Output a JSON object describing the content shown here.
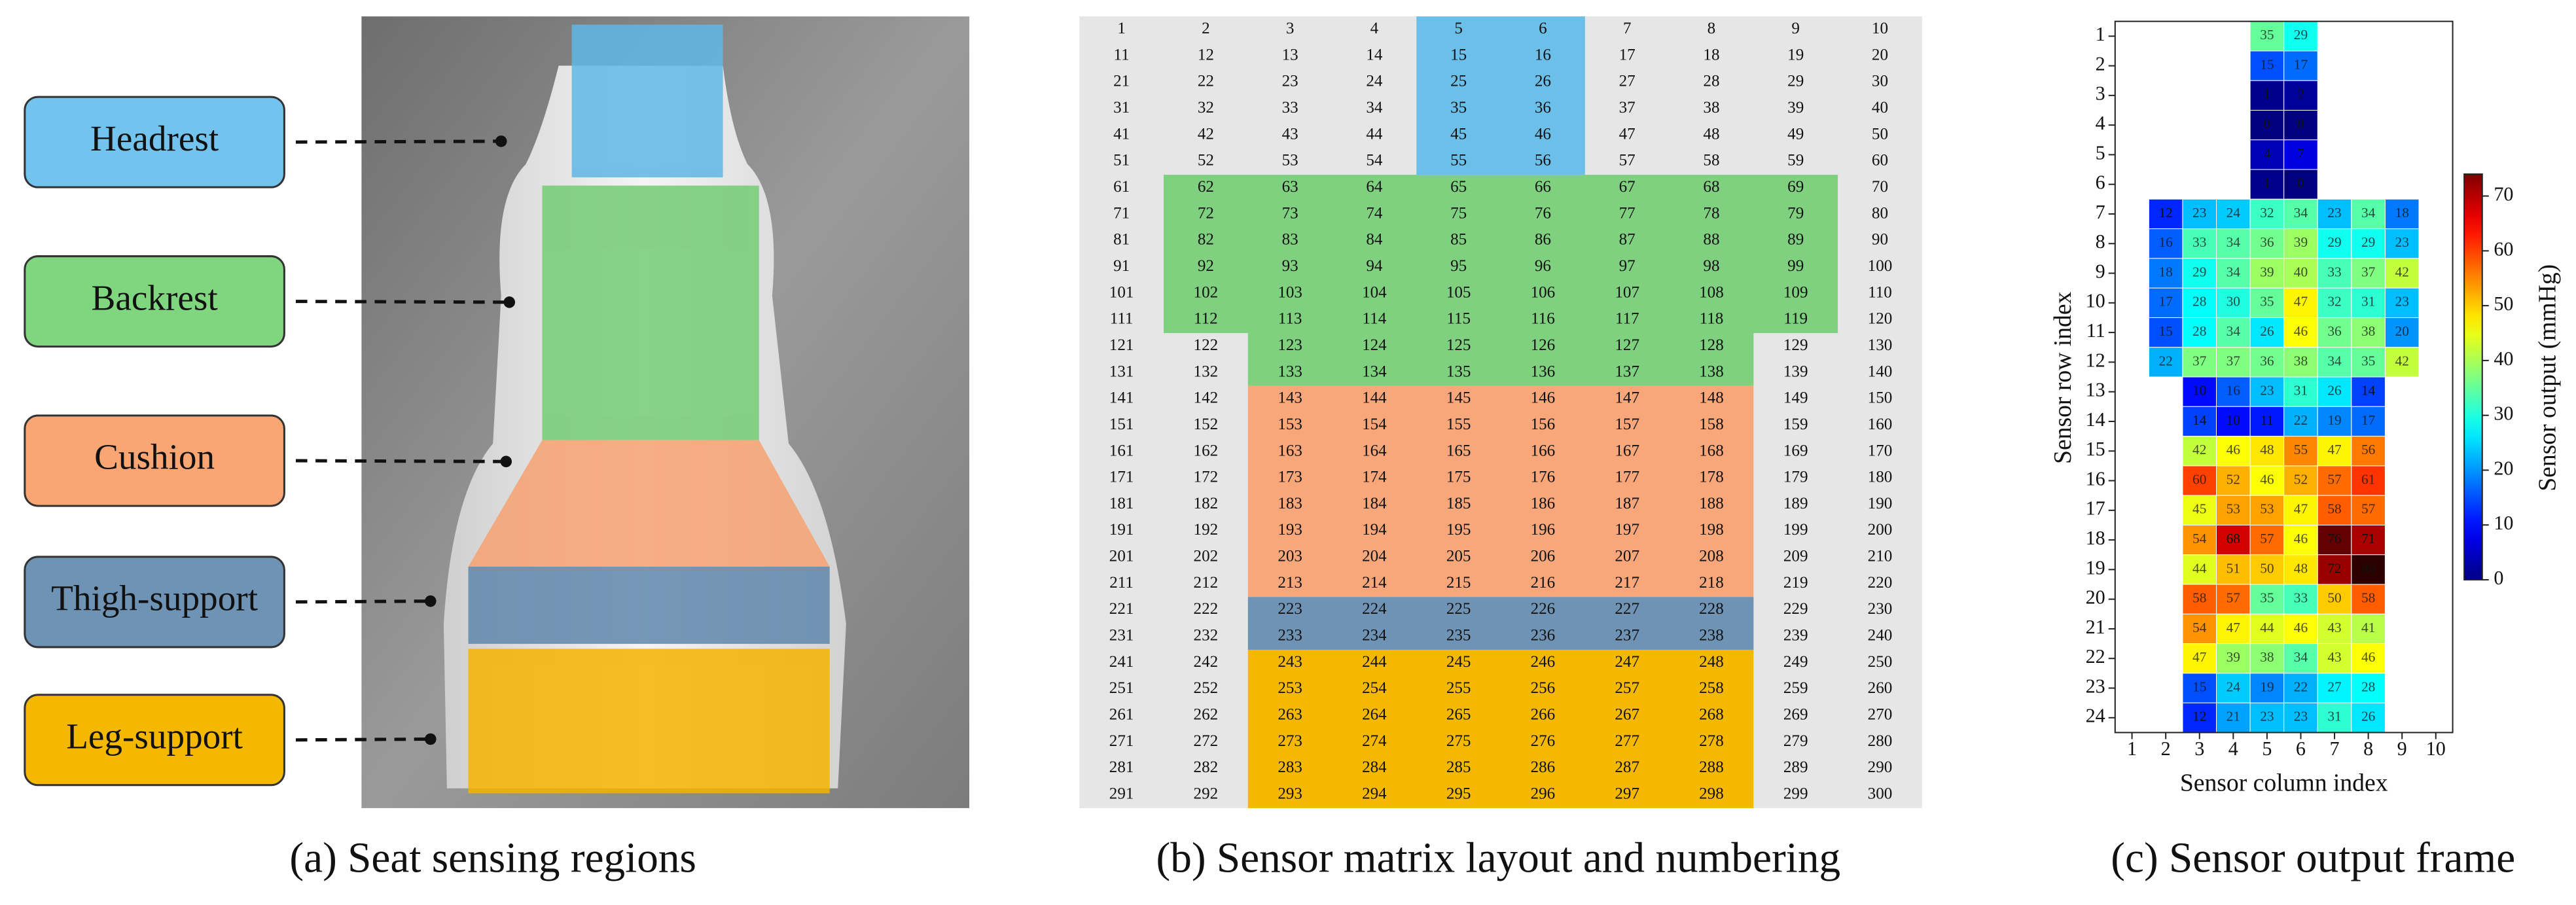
{
  "panel_a": {
    "caption": "(a) Seat sensing regions",
    "regions": [
      "Headrest",
      "Backrest",
      "Cushion",
      "Thigh-support",
      "Leg-support"
    ]
  },
  "panel_b": {
    "caption": "(b) Sensor matrix layout and numbering",
    "cells": [
      [
        1,
        2,
        3,
        4,
        5,
        6,
        7,
        8,
        9,
        10
      ],
      [
        11,
        12,
        13,
        14,
        15,
        16,
        17,
        18,
        19,
        20
      ],
      [
        21,
        22,
        23,
        24,
        25,
        26,
        27,
        28,
        29,
        30
      ],
      [
        31,
        32,
        33,
        34,
        35,
        36,
        37,
        38,
        39,
        40
      ],
      [
        41,
        42,
        43,
        44,
        45,
        46,
        47,
        48,
        49,
        50
      ],
      [
        51,
        52,
        53,
        54,
        55,
        56,
        57,
        58,
        59,
        60
      ],
      [
        61,
        62,
        63,
        64,
        65,
        66,
        67,
        68,
        69,
        70
      ],
      [
        71,
        72,
        73,
        74,
        75,
        76,
        77,
        78,
        79,
        80
      ],
      [
        81,
        82,
        83,
        84,
        85,
        86,
        87,
        88,
        89,
        90
      ],
      [
        91,
        92,
        93,
        94,
        95,
        96,
        97,
        98,
        99,
        100
      ],
      [
        101,
        102,
        103,
        104,
        105,
        106,
        107,
        108,
        109,
        110
      ],
      [
        111,
        112,
        113,
        114,
        115,
        116,
        117,
        118,
        119,
        120
      ],
      [
        121,
        122,
        123,
        124,
        125,
        126,
        127,
        128,
        129,
        130
      ],
      [
        131,
        132,
        133,
        134,
        135,
        136,
        137,
        138,
        139,
        140
      ],
      [
        141,
        142,
        143,
        144,
        145,
        146,
        147,
        148,
        149,
        150
      ],
      [
        151,
        152,
        153,
        154,
        155,
        156,
        157,
        158,
        159,
        160
      ],
      [
        161,
        162,
        163,
        164,
        165,
        166,
        167,
        168,
        169,
        170
      ],
      [
        171,
        172,
        173,
        174,
        175,
        176,
        177,
        178,
        179,
        180
      ],
      [
        181,
        182,
        183,
        184,
        185,
        186,
        187,
        188,
        189,
        190
      ],
      [
        191,
        192,
        193,
        194,
        195,
        196,
        197,
        198,
        199,
        200
      ],
      [
        201,
        202,
        203,
        204,
        205,
        206,
        207,
        208,
        209,
        210
      ],
      [
        211,
        212,
        213,
        214,
        215,
        216,
        217,
        218,
        219,
        220
      ],
      [
        221,
        222,
        223,
        224,
        225,
        226,
        227,
        228,
        229,
        230
      ],
      [
        231,
        232,
        233,
        234,
        235,
        236,
        237,
        238,
        239,
        240
      ],
      [
        241,
        242,
        243,
        244,
        245,
        246,
        247,
        248,
        249,
        250
      ],
      [
        251,
        252,
        253,
        254,
        255,
        256,
        257,
        258,
        259,
        260
      ],
      [
        261,
        262,
        263,
        264,
        265,
        266,
        267,
        268,
        269,
        270
      ],
      [
        271,
        272,
        273,
        274,
        275,
        276,
        277,
        278,
        279,
        280
      ],
      [
        281,
        282,
        283,
        284,
        285,
        286,
        287,
        288,
        289,
        290
      ],
      [
        291,
        292,
        293,
        294,
        295,
        296,
        297,
        298,
        299,
        300
      ]
    ]
  },
  "chart_data": {
    "type": "heatmap",
    "caption": "(c) Sensor output frame",
    "xlabel": "Sensor column index",
    "ylabel": "Sensor row index",
    "xlim": [
      0.5,
      10.5
    ],
    "ylim": [
      24.5,
      0.5
    ],
    "xticks": [
      1,
      2,
      3,
      4,
      5,
      6,
      7,
      8,
      9,
      10
    ],
    "yticks": [
      1,
      2,
      3,
      4,
      5,
      6,
      7,
      8,
      9,
      10,
      11,
      12,
      13,
      14,
      15,
      16,
      17,
      18,
      19,
      20,
      21,
      22,
      23,
      24
    ],
    "colormap": "jet",
    "zlim": [
      0,
      74
    ],
    "zticks": [
      0,
      10,
      20,
      30,
      40,
      50,
      60,
      70
    ],
    "colorbar_label": "Sensor output (mmHg)",
    "values": [
      [
        null,
        null,
        null,
        null,
        35,
        29,
        null,
        null,
        null,
        null
      ],
      [
        null,
        null,
        null,
        null,
        15,
        17,
        null,
        null,
        null,
        null
      ],
      [
        null,
        null,
        null,
        null,
        1,
        2,
        null,
        null,
        null,
        null
      ],
      [
        null,
        null,
        null,
        null,
        0,
        0,
        null,
        null,
        null,
        null
      ],
      [
        null,
        null,
        null,
        null,
        4,
        7,
        null,
        null,
        null,
        null
      ],
      [
        null,
        null,
        null,
        null,
        1,
        0,
        null,
        null,
        null,
        null
      ],
      [
        null,
        12,
        23,
        24,
        32,
        34,
        23,
        34,
        18,
        null
      ],
      [
        null,
        16,
        33,
        34,
        36,
        39,
        29,
        29,
        23,
        null
      ],
      [
        null,
        18,
        29,
        34,
        39,
        40,
        33,
        37,
        42,
        null
      ],
      [
        null,
        17,
        28,
        30,
        35,
        47,
        32,
        31,
        23,
        null
      ],
      [
        null,
        15,
        28,
        34,
        26,
        46,
        36,
        38,
        20,
        null
      ],
      [
        null,
        22,
        37,
        37,
        36,
        38,
        34,
        35,
        42,
        null
      ],
      [
        null,
        null,
        10,
        16,
        23,
        31,
        26,
        14,
        null,
        null
      ],
      [
        null,
        null,
        14,
        10,
        11,
        22,
        19,
        17,
        null,
        null
      ],
      [
        null,
        null,
        42,
        46,
        48,
        55,
        47,
        56,
        null,
        null
      ],
      [
        null,
        null,
        60,
        52,
        46,
        52,
        57,
        61,
        null,
        null
      ],
      [
        null,
        null,
        45,
        53,
        53,
        47,
        58,
        57,
        null,
        null
      ],
      [
        null,
        null,
        54,
        68,
        57,
        46,
        76,
        71,
        null,
        null
      ],
      [
        null,
        null,
        44,
        51,
        50,
        48,
        72,
        80,
        null,
        null
      ],
      [
        null,
        null,
        58,
        57,
        35,
        33,
        50,
        58,
        null,
        null
      ],
      [
        null,
        null,
        54,
        47,
        44,
        46,
        43,
        41,
        null,
        null
      ],
      [
        null,
        null,
        47,
        39,
        38,
        34,
        43,
        46,
        null,
        null
      ],
      [
        null,
        null,
        15,
        24,
        19,
        22,
        27,
        28,
        null,
        null
      ],
      [
        null,
        null,
        12,
        21,
        23,
        23,
        31,
        26,
        null,
        null
      ]
    ]
  }
}
